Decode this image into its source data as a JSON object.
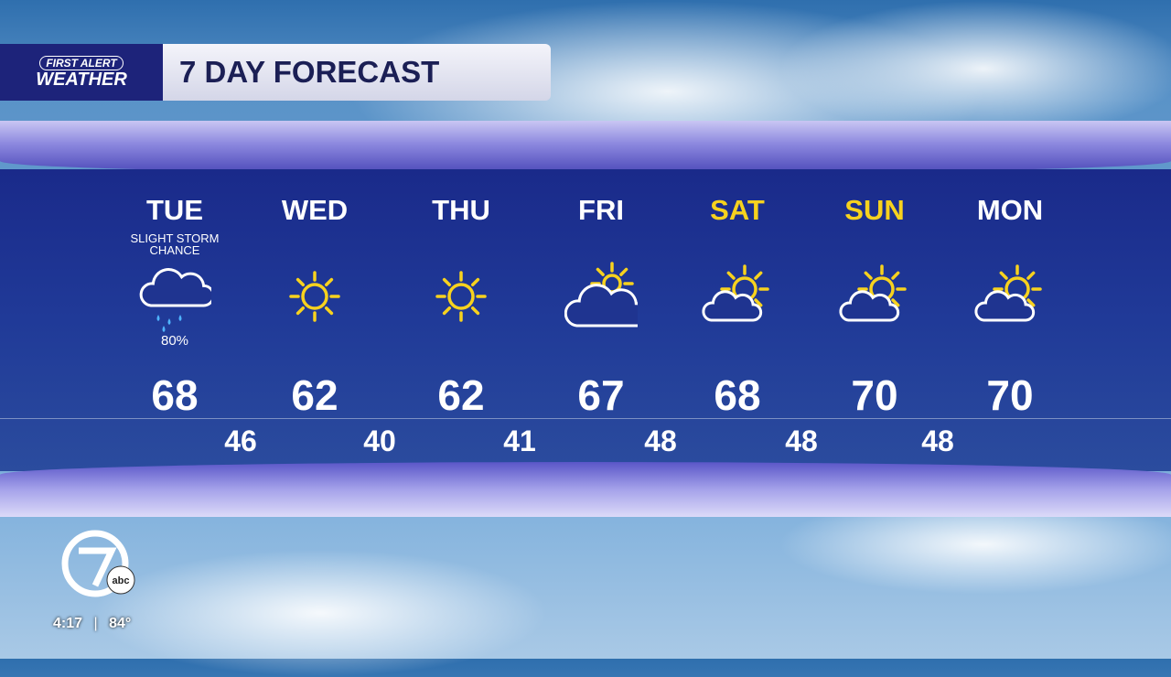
{
  "header": {
    "logo_line1": "FIRST ALERT",
    "logo_line2": "WEATHER",
    "title": "7 DAY FORECAST"
  },
  "colors": {
    "weekday": "#ffffff",
    "weekend": "#f7d21e",
    "sun": "#f7d21e",
    "rain": "#4fb4ff"
  },
  "days": [
    {
      "name": "TUE",
      "condition": "SLIGHT STORM CHANCE",
      "icon": "rain-cloud-icon",
      "precip": "80%",
      "high": "68",
      "low": "46",
      "weekend": false
    },
    {
      "name": "WED",
      "condition": "",
      "icon": "sun-icon",
      "precip": "",
      "high": "62",
      "low": "40",
      "weekend": false
    },
    {
      "name": "THU",
      "condition": "",
      "icon": "sun-icon",
      "precip": "",
      "high": "62",
      "low": "41",
      "weekend": false
    },
    {
      "name": "FRI",
      "condition": "",
      "icon": "mostly-cloudy-icon",
      "precip": "",
      "high": "67",
      "low": "48",
      "weekend": false
    },
    {
      "name": "SAT",
      "condition": "",
      "icon": "partly-sunny-icon",
      "precip": "",
      "high": "68",
      "low": "48",
      "weekend": true
    },
    {
      "name": "SUN",
      "condition": "",
      "icon": "partly-sunny-icon",
      "precip": "",
      "high": "70",
      "low": "48",
      "weekend": true
    },
    {
      "name": "MON",
      "condition": "",
      "icon": "partly-sunny-icon",
      "precip": "",
      "high": "70",
      "low": "",
      "weekend": false
    }
  ],
  "station": {
    "logo": "7 abc",
    "time": "4:17",
    "temp": "84°"
  }
}
